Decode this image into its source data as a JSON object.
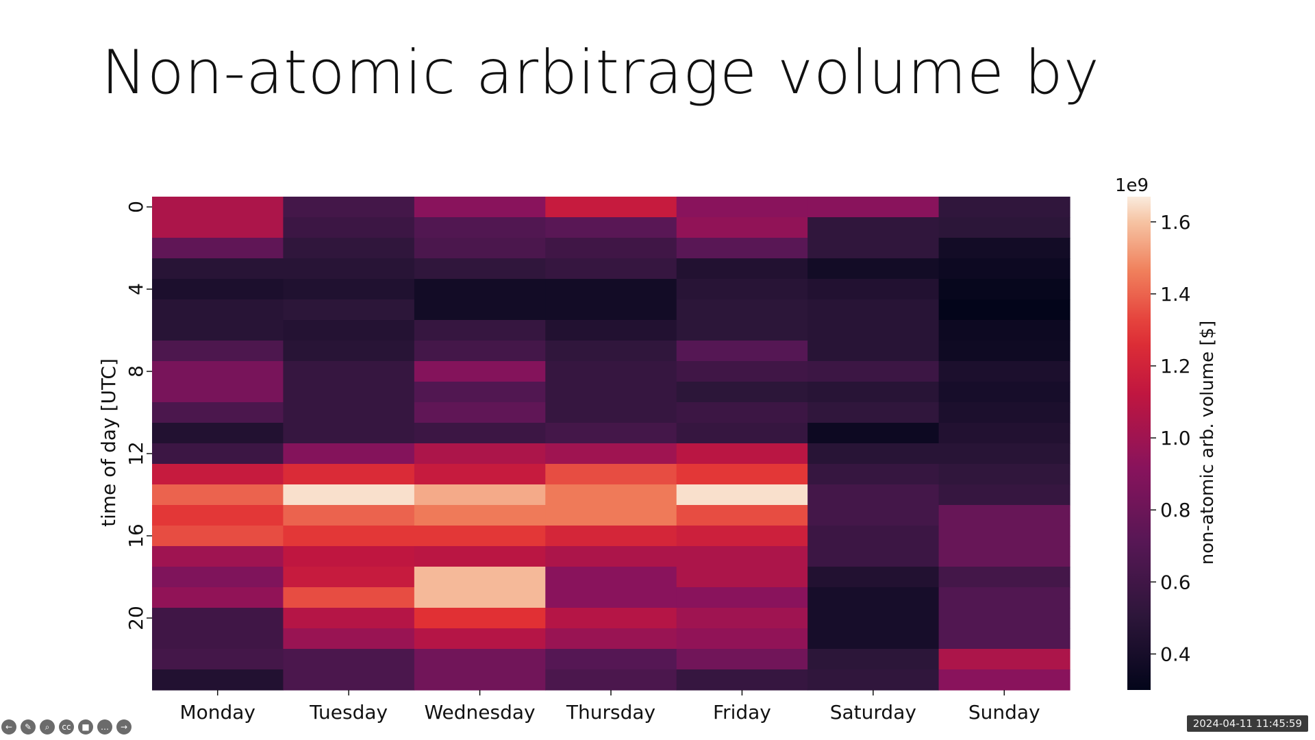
{
  "slide": {
    "title": "Non-atomic arbitrage volume by time &"
  },
  "timestamp": "2024-04-11 11:45:59",
  "toolbar": {
    "items": [
      {
        "icon": "back-icon",
        "glyph": "←"
      },
      {
        "icon": "pen-icon",
        "glyph": "✎"
      },
      {
        "icon": "zoom-icon",
        "glyph": "⌕"
      },
      {
        "icon": "captions-icon",
        "glyph": "cc"
      },
      {
        "icon": "video-icon",
        "glyph": "■"
      },
      {
        "icon": "more-icon",
        "glyph": "…"
      },
      {
        "icon": "forward-icon",
        "glyph": "→"
      }
    ]
  },
  "chart_data": {
    "type": "heatmap",
    "title": "",
    "xlabel": "",
    "ylabel": "time of day [UTC]",
    "x_categories": [
      "Monday",
      "Tuesday",
      "Wednesday",
      "Thursday",
      "Friday",
      "Saturday",
      "Sunday"
    ],
    "y_categories": [
      "0",
      "1",
      "2",
      "3",
      "4",
      "5",
      "6",
      "7",
      "8",
      "9",
      "10",
      "11",
      "12",
      "13",
      "14",
      "15",
      "16",
      "17",
      "18",
      "19",
      "20",
      "21",
      "22",
      "23"
    ],
    "y_tick_labels": [
      "0",
      "4",
      "8",
      "12",
      "16",
      "20"
    ],
    "colorbar": {
      "label": "non-atomic arb. volume [$]",
      "offset_label": "1e9",
      "ticks": [
        "0.4",
        "0.6",
        "0.8",
        "1.0",
        "1.2",
        "1.4",
        "1.6"
      ],
      "tick_values": [
        0.4,
        0.6,
        0.8,
        1.0,
        1.2,
        1.4,
        1.6
      ],
      "range": [
        0.3,
        1.67
      ],
      "colormap": "rocket"
    },
    "values": [
      [
        1.05,
        0.62,
        0.92,
        1.15,
        0.92,
        0.92,
        0.52
      ],
      [
        1.05,
        0.58,
        0.68,
        0.72,
        0.95,
        0.52,
        0.5
      ],
      [
        0.75,
        0.52,
        0.65,
        0.6,
        0.72,
        0.52,
        0.38
      ],
      [
        0.48,
        0.48,
        0.52,
        0.55,
        0.45,
        0.38,
        0.35
      ],
      [
        0.42,
        0.44,
        0.38,
        0.38,
        0.48,
        0.45,
        0.32
      ],
      [
        0.48,
        0.5,
        0.38,
        0.38,
        0.5,
        0.48,
        0.3
      ],
      [
        0.48,
        0.46,
        0.55,
        0.45,
        0.5,
        0.48,
        0.35
      ],
      [
        0.66,
        0.48,
        0.62,
        0.52,
        0.7,
        0.48,
        0.36
      ],
      [
        0.85,
        0.55,
        0.9,
        0.55,
        0.6,
        0.58,
        0.42
      ],
      [
        0.85,
        0.55,
        0.68,
        0.55,
        0.5,
        0.48,
        0.4
      ],
      [
        0.65,
        0.55,
        0.75,
        0.55,
        0.58,
        0.52,
        0.42
      ],
      [
        0.45,
        0.55,
        0.58,
        0.62,
        0.55,
        0.35,
        0.45
      ],
      [
        0.58,
        0.9,
        1.05,
        1.0,
        1.1,
        0.48,
        0.48
      ],
      [
        1.15,
        1.25,
        1.15,
        1.35,
        1.3,
        0.55,
        0.52
      ],
      [
        1.4,
        1.65,
        1.55,
        1.45,
        1.65,
        0.62,
        0.55
      ],
      [
        1.3,
        1.4,
        1.45,
        1.45,
        1.35,
        0.62,
        0.78
      ],
      [
        1.35,
        1.3,
        1.3,
        1.22,
        1.18,
        0.58,
        0.78
      ],
      [
        1.0,
        1.12,
        1.1,
        1.05,
        1.05,
        0.58,
        0.78
      ],
      [
        0.88,
        1.15,
        1.58,
        0.92,
        1.05,
        0.45,
        0.62
      ],
      [
        0.95,
        1.35,
        1.58,
        0.92,
        0.92,
        0.4,
        0.68
      ],
      [
        0.6,
        1.08,
        1.28,
        1.08,
        1.0,
        0.4,
        0.68
      ],
      [
        0.6,
        0.98,
        1.08,
        0.98,
        0.95,
        0.4,
        0.68
      ],
      [
        0.62,
        0.65,
        0.82,
        0.7,
        0.82,
        0.5,
        1.05
      ],
      [
        0.45,
        0.65,
        0.82,
        0.65,
        0.55,
        0.52,
        0.92
      ]
    ]
  }
}
